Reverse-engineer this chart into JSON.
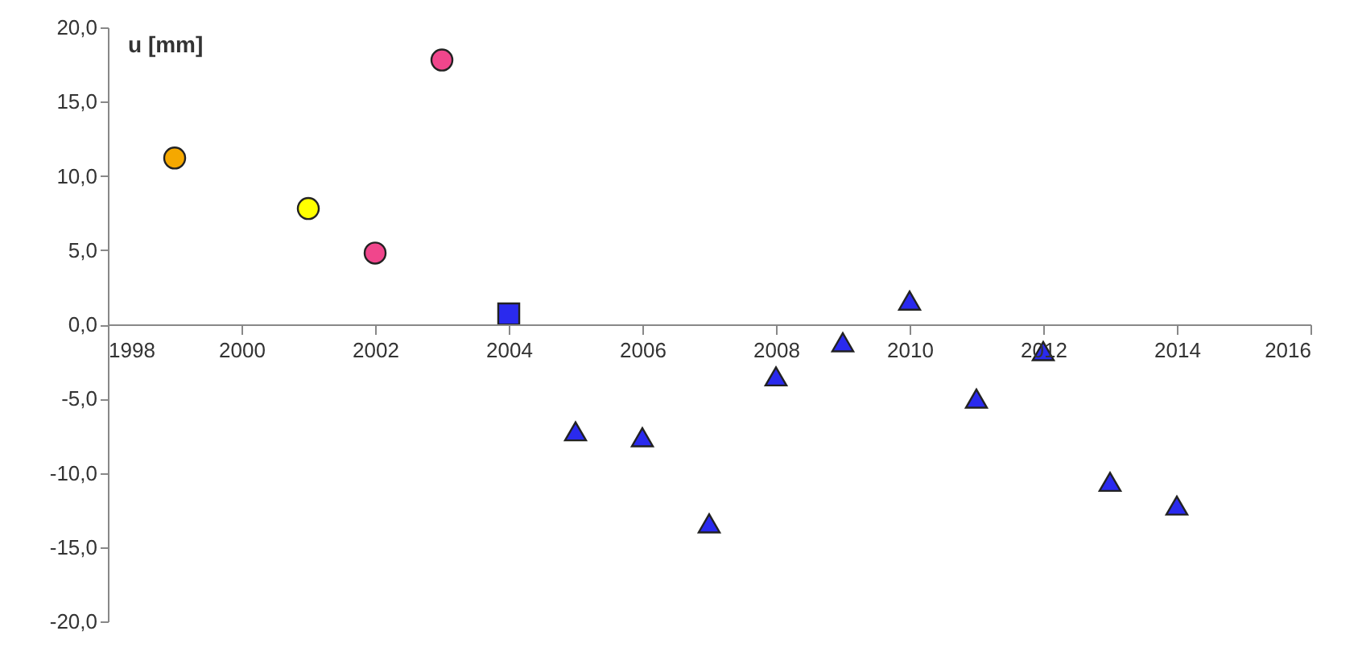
{
  "chart_data": {
    "type": "scatter",
    "ylabel": "u [mm]",
    "series": [
      {
        "color": "#f5a800",
        "marker": "circle",
        "x": [
          1999
        ],
        "values": [
          11.2
        ]
      },
      {
        "color": "#ffff00",
        "marker": "circle",
        "x": [
          2001
        ],
        "values": [
          7.8
        ]
      },
      {
        "color": "#f0468c",
        "marker": "circle",
        "x": [
          2002,
          2003
        ],
        "values": [
          4.8,
          17.8
        ]
      },
      {
        "color": "#2a2aee",
        "marker": "square",
        "x": [
          2004
        ],
        "values": [
          0.7
        ]
      },
      {
        "color": "#2a2aee",
        "marker": "triangle",
        "x": [
          2005,
          2006,
          2007,
          2008,
          2009,
          2010,
          2011,
          2012,
          2013,
          2014
        ],
        "values": [
          -7.2,
          -7.6,
          -13.4,
          -3.5,
          -1.2,
          1.6,
          -5.0,
          -1.8,
          -10.6,
          -12.2
        ]
      }
    ],
    "xlim": [
      1998,
      2016
    ],
    "xticks": [
      1998,
      2000,
      2002,
      2004,
      2006,
      2008,
      2010,
      2012,
      2014,
      2016
    ],
    "ylim": [
      -20,
      20
    ],
    "yticks": [
      {
        "value": -20,
        "label": "-20,0"
      },
      {
        "value": -15,
        "label": "-15,0"
      },
      {
        "value": -10,
        "label": "-10,0"
      },
      {
        "value": -5,
        "label": "-5,0"
      },
      {
        "value": 0,
        "label": "0,0"
      },
      {
        "value": 5,
        "label": "5,0"
      },
      {
        "value": 10,
        "label": "10,0"
      },
      {
        "value": 15,
        "label": "15,0"
      },
      {
        "value": 20,
        "label": "20,0"
      }
    ],
    "grid": false
  }
}
